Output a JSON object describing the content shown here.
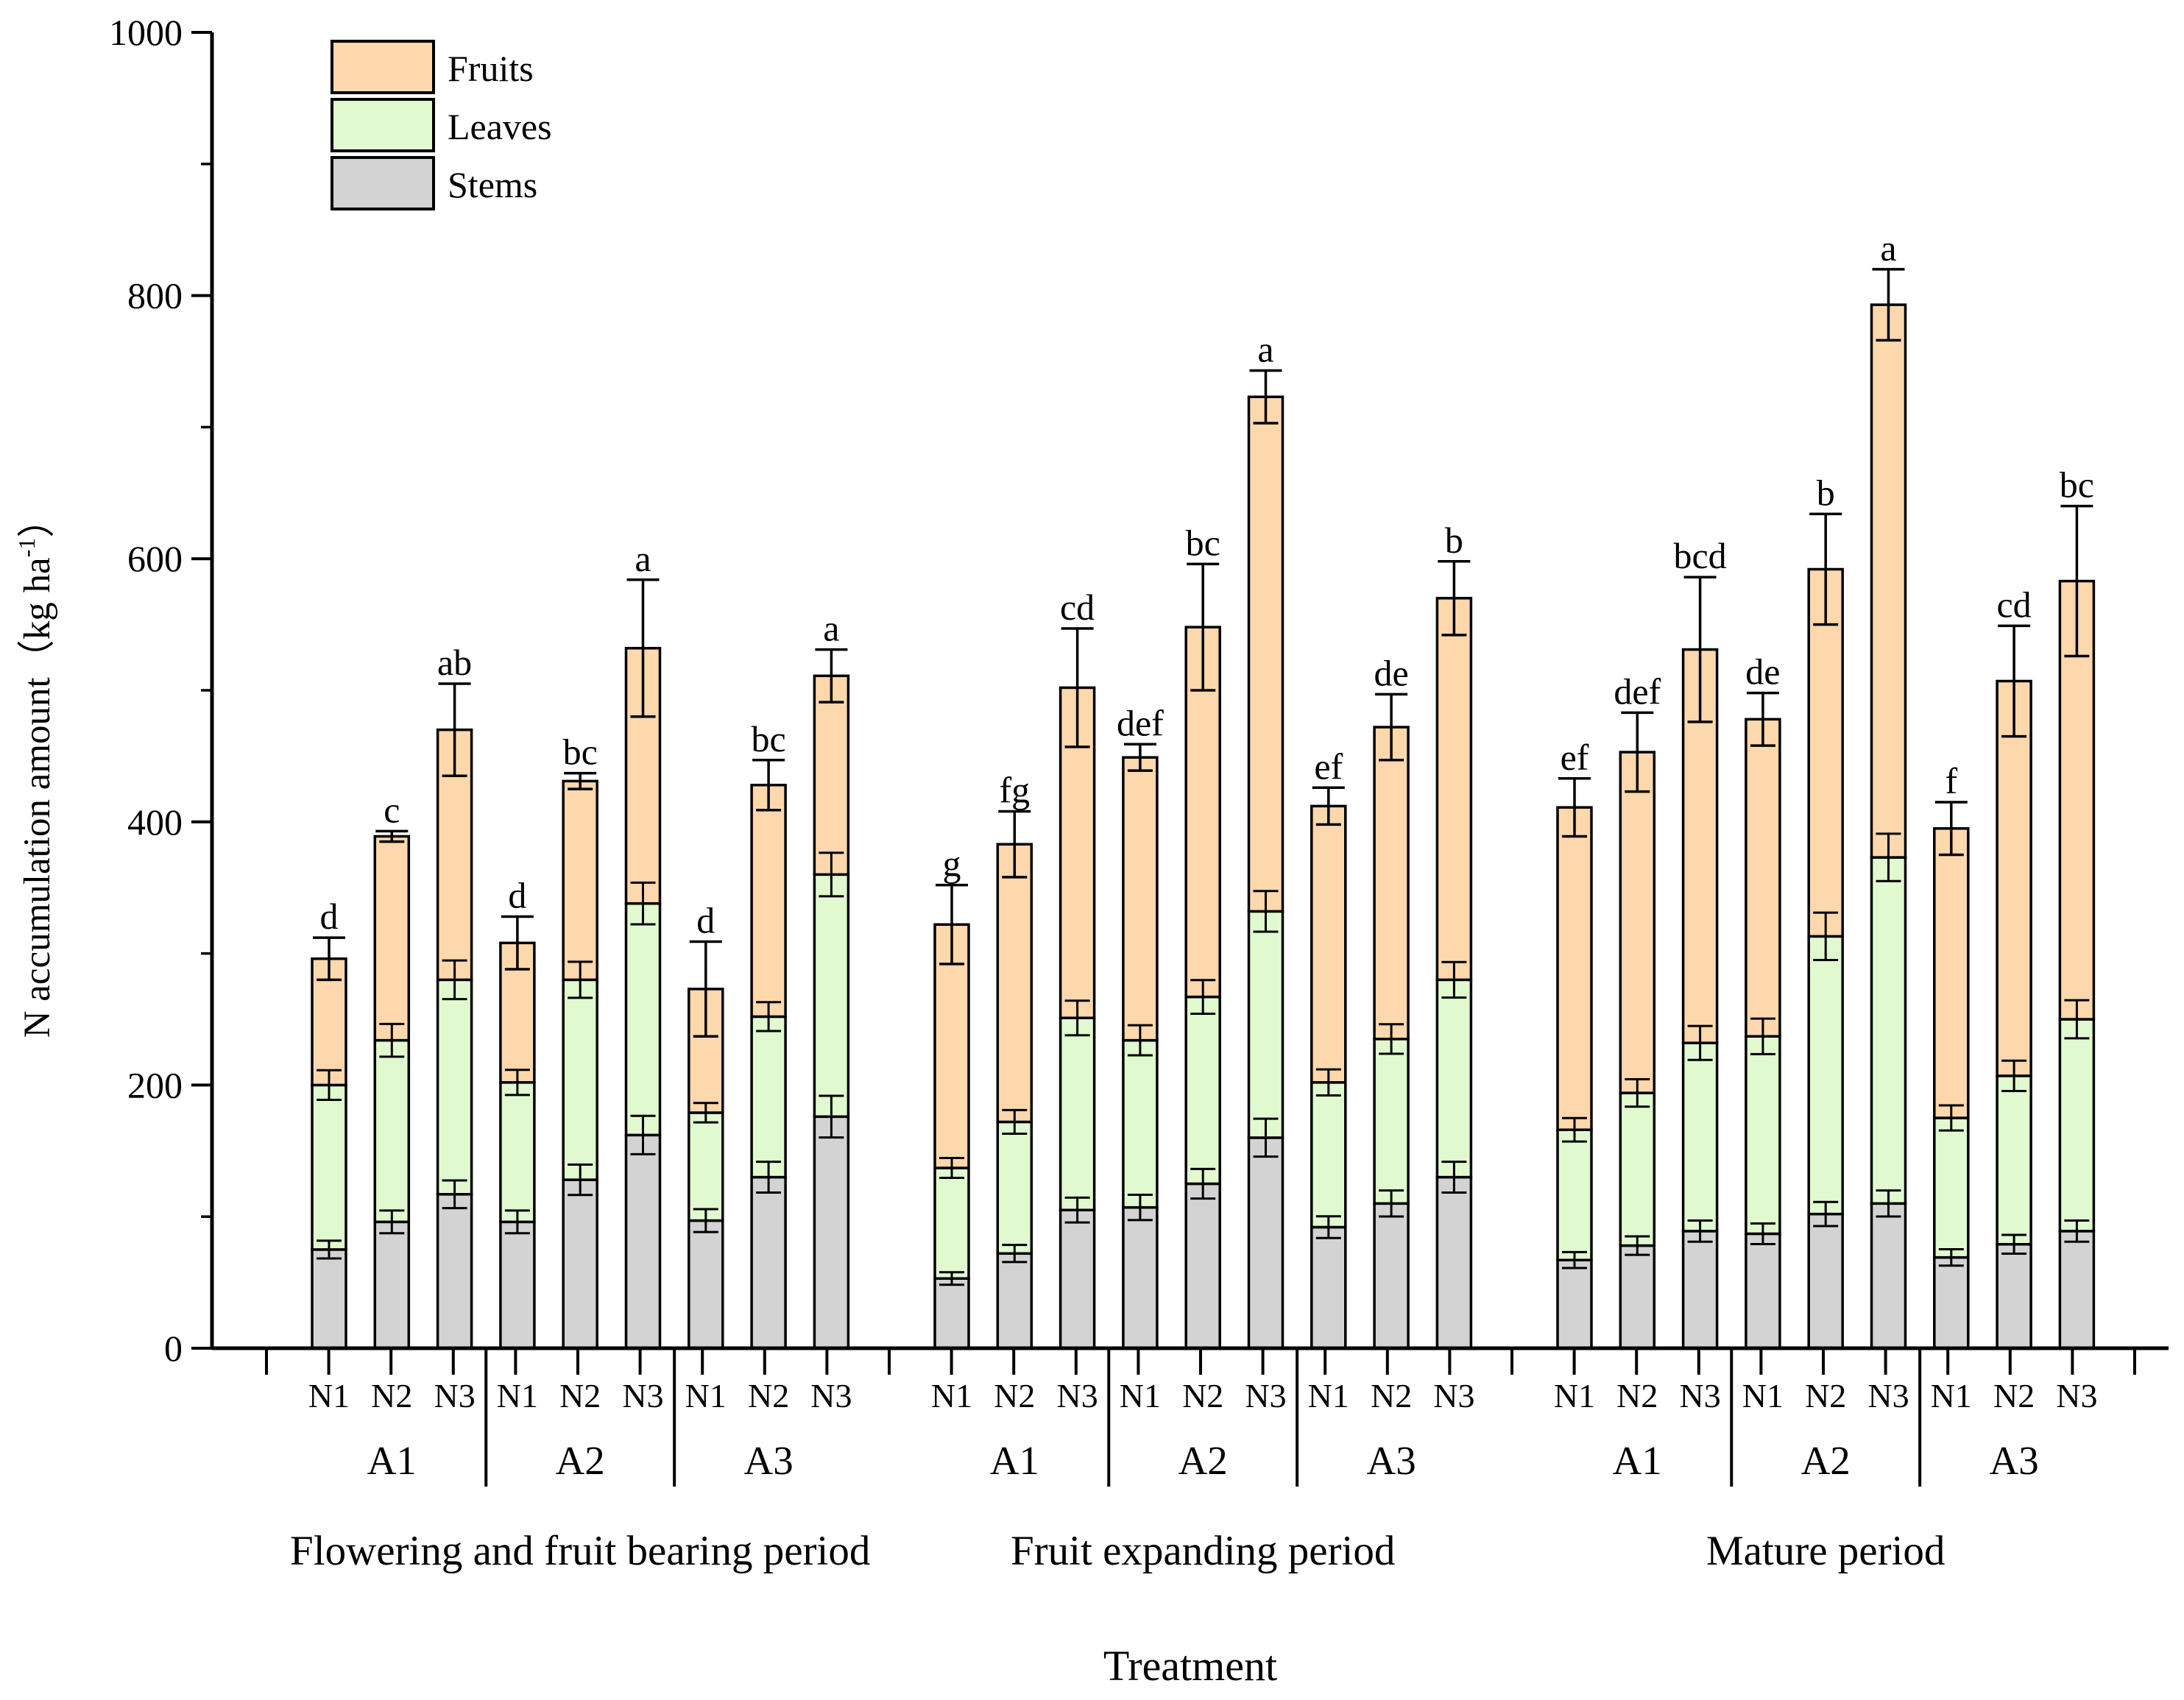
{
  "chart_data": {
    "type": "bar",
    "stacked": true,
    "title": "",
    "xlabel": "Treatment",
    "ylabel": "N accumulation amount（kg ha",
    "ylabel_sup": "-1",
    "ylabel_close": "）",
    "ylim": [
      0,
      1000
    ],
    "yticks": [
      "0",
      "200",
      "400",
      "600",
      "800",
      "1000"
    ],
    "grid": false,
    "legend_position": "top-left",
    "colors": {
      "Stems": "#d3d3d3",
      "Leaves": "#e1f9cf",
      "Fruits": "#fdd8ac",
      "stroke": "#000000"
    },
    "legend": [
      "Fruits",
      "Leaves",
      "Stems"
    ],
    "periods": [
      {
        "name": "Flowering and fruit bearing period",
        "groups": [
          {
            "name": "A1",
            "bars": [
              {
                "label": "N1",
                "stems": 75,
                "leaves": 125,
                "fruits": 96,
                "total_err": 16,
                "letter": "d"
              },
              {
                "label": "N2",
                "stems": 96,
                "leaves": 138,
                "fruits": 155,
                "total_err": 4,
                "letter": "c"
              },
              {
                "label": "N3",
                "stems": 117,
                "leaves": 163,
                "fruits": 190,
                "total_err": 35,
                "letter": "ab"
              }
            ]
          },
          {
            "name": "A2",
            "bars": [
              {
                "label": "N1",
                "stems": 96,
                "leaves": 106,
                "fruits": 106,
                "total_err": 20,
                "letter": "d"
              },
              {
                "label": "N2",
                "stems": 128,
                "leaves": 152,
                "fruits": 151,
                "total_err": 6,
                "letter": "bc"
              },
              {
                "label": "N3",
                "stems": 162,
                "leaves": 176,
                "fruits": 194,
                "total_err": 52,
                "letter": "a"
              }
            ]
          },
          {
            "name": "A3",
            "bars": [
              {
                "label": "N1",
                "stems": 97,
                "leaves": 82,
                "fruits": 94,
                "total_err": 36,
                "letter": "d"
              },
              {
                "label": "N2",
                "stems": 130,
                "leaves": 122,
                "fruits": 176,
                "total_err": 19,
                "letter": "bc"
              },
              {
                "label": "N3",
                "stems": 176,
                "leaves": 184,
                "fruits": 151,
                "total_err": 20,
                "letter": "a"
              }
            ]
          }
        ]
      },
      {
        "name": "Fruit expanding period",
        "groups": [
          {
            "name": "A1",
            "bars": [
              {
                "label": "N1",
                "stems": 53,
                "leaves": 84,
                "fruits": 185,
                "total_err": 30,
                "letter": "g"
              },
              {
                "label": "N2",
                "stems": 72,
                "leaves": 100,
                "fruits": 211,
                "total_err": 25,
                "letter": "fg"
              },
              {
                "label": "N3",
                "stems": 105,
                "leaves": 146,
                "fruits": 251,
                "total_err": 45,
                "letter": "cd"
              }
            ]
          },
          {
            "name": "A2",
            "bars": [
              {
                "label": "N1",
                "stems": 107,
                "leaves": 127,
                "fruits": 215,
                "total_err": 10,
                "letter": "def"
              },
              {
                "label": "N2",
                "stems": 125,
                "leaves": 142,
                "fruits": 281,
                "total_err": 48,
                "letter": "bc"
              },
              {
                "label": "N3",
                "stems": 160,
                "leaves": 172,
                "fruits": 391,
                "total_err": 20,
                "letter": "a"
              }
            ]
          },
          {
            "name": "A3",
            "bars": [
              {
                "label": "N1",
                "stems": 92,
                "leaves": 110,
                "fruits": 210,
                "total_err": 14,
                "letter": "ef"
              },
              {
                "label": "N2",
                "stems": 110,
                "leaves": 125,
                "fruits": 237,
                "total_err": 25,
                "letter": "de"
              },
              {
                "label": "N3",
                "stems": 130,
                "leaves": 150,
                "fruits": 290,
                "total_err": 28,
                "letter": "b"
              }
            ]
          }
        ]
      },
      {
        "name": "Mature period",
        "groups": [
          {
            "name": "A1",
            "bars": [
              {
                "label": "N1",
                "stems": 67,
                "leaves": 99,
                "fruits": 245,
                "total_err": 22,
                "letter": "ef"
              },
              {
                "label": "N2",
                "stems": 78,
                "leaves": 116,
                "fruits": 259,
                "total_err": 30,
                "letter": "def"
              },
              {
                "label": "N3",
                "stems": 89,
                "leaves": 143,
                "fruits": 299,
                "total_err": 55,
                "letter": "bcd"
              }
            ]
          },
          {
            "name": "A2",
            "bars": [
              {
                "label": "N1",
                "stems": 87,
                "leaves": 150,
                "fruits": 241,
                "total_err": 20,
                "letter": "de"
              },
              {
                "label": "N2",
                "stems": 102,
                "leaves": 211,
                "fruits": 279,
                "total_err": 42,
                "letter": "b"
              },
              {
                "label": "N3",
                "stems": 110,
                "leaves": 263,
                "fruits": 420,
                "total_err": 27,
                "letter": "a"
              }
            ]
          },
          {
            "name": "A3",
            "bars": [
              {
                "label": "N1",
                "stems": 69,
                "leaves": 106,
                "fruits": 220,
                "total_err": 20,
                "letter": "f"
              },
              {
                "label": "N2",
                "stems": 79,
                "leaves": 128,
                "fruits": 300,
                "total_err": 42,
                "letter": "cd"
              },
              {
                "label": "N3",
                "stems": 89,
                "leaves": 161,
                "fruits": 333,
                "total_err": 57,
                "letter": "bc"
              }
            ]
          }
        ]
      }
    ]
  }
}
